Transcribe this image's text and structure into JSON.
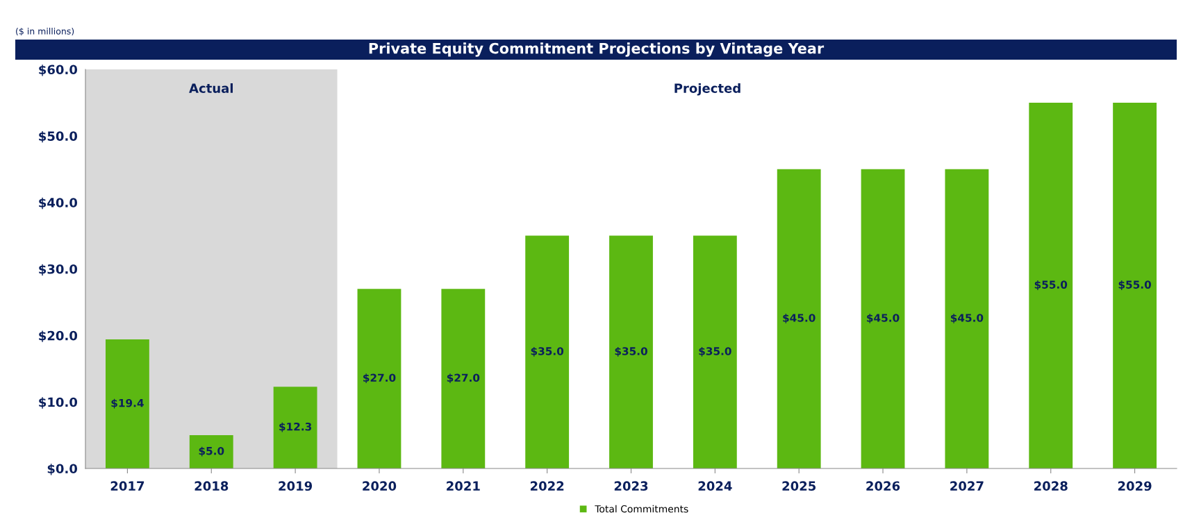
{
  "chart_data": {
    "type": "bar",
    "title": "Private Equity Commitment Projections by Vintage Year",
    "categories": [
      "2017",
      "2018",
      "2019",
      "2020",
      "2021",
      "2022",
      "2023",
      "2024",
      "2025",
      "2026",
      "2027",
      "2028",
      "2029"
    ],
    "series": [
      {
        "name": "Total Commitments",
        "color": "#5cb812",
        "values": [
          19.4,
          5.0,
          12.3,
          27.0,
          27.0,
          35.0,
          35.0,
          35.0,
          45.0,
          45.0,
          45.0,
          55.0,
          55.0
        ],
        "value_labels": [
          "$19.4",
          "$5.0",
          "$12.3",
          "$27.0",
          "$27.0",
          "$35.0",
          "$35.0",
          "$35.0",
          "$45.0",
          "$45.0",
          "$45.0",
          "$55.0",
          "$55.0"
        ]
      }
    ],
    "ylim": [
      0,
      60
    ],
    "yticks": [
      {
        "value": 0,
        "label": "$0.0"
      },
      {
        "value": 10,
        "label": "$10.0"
      },
      {
        "value": 20,
        "label": "$20.0"
      },
      {
        "value": 30,
        "label": "$30.0"
      },
      {
        "value": 40,
        "label": "$40.0"
      },
      {
        "value": 50,
        "label": "$50.0"
      },
      {
        "value": 60,
        "label": "$60.0"
      }
    ],
    "bands": [
      {
        "axis": "x",
        "from": "2017",
        "to": "2019",
        "label": "Actual",
        "color": "#d9d9d9"
      }
    ],
    "annotations": [
      "($ in millions)",
      "Projected"
    ],
    "legend": "bottom",
    "grid": false
  }
}
